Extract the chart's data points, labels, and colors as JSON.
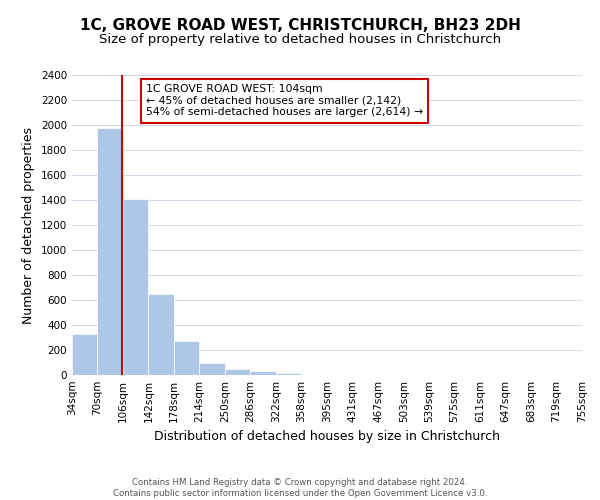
{
  "title": "1C, GROVE ROAD WEST, CHRISTCHURCH, BH23 2DH",
  "subtitle": "Size of property relative to detached houses in Christchurch",
  "xlabel": "Distribution of detached houses by size in Christchurch",
  "ylabel": "Number of detached properties",
  "footer_lines": [
    "Contains HM Land Registry data © Crown copyright and database right 2024.",
    "Contains public sector information licensed under the Open Government Licence v3.0."
  ],
  "bin_edges": [
    34,
    70,
    106,
    142,
    178,
    214,
    250,
    286,
    322,
    358,
    395,
    431,
    467,
    503,
    539,
    575,
    611,
    647,
    683,
    719,
    755
  ],
  "bin_counts": [
    325,
    1975,
    1410,
    650,
    275,
    100,
    45,
    30,
    20,
    0,
    0,
    0,
    0,
    0,
    0,
    0,
    0,
    0,
    0,
    0
  ],
  "bar_color": "#aec6e8",
  "property_line_x": 104,
  "property_line_color": "#cc0000",
  "annotation_box_text": "1C GROVE ROAD WEST: 104sqm\n← 45% of detached houses are smaller (2,142)\n54% of semi-detached houses are larger (2,614) →",
  "ylim": [
    0,
    2400
  ],
  "yticks": [
    0,
    200,
    400,
    600,
    800,
    1000,
    1200,
    1400,
    1600,
    1800,
    2000,
    2200,
    2400
  ],
  "background_color": "#ffffff",
  "grid_color": "#d0d8e8",
  "title_fontsize": 11,
  "subtitle_fontsize": 9.5,
  "axis_label_fontsize": 9,
  "tick_fontsize": 7.5,
  "annotation_fontsize": 7.8,
  "footer_fontsize": 6.2
}
